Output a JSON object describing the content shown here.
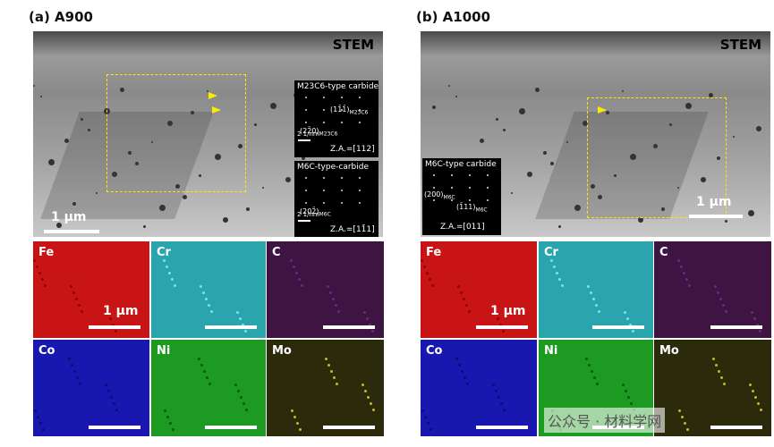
{
  "panels": [
    {
      "label": "(a) A900",
      "image": {
        "label": "STEM",
        "scale_bar": "1 μm",
        "insets": [
          {
            "title": "M23C6-type carbide",
            "spots": [
              {
                "index": "(11̄1̄)",
                "phase": "M23C6"
              },
              {
                "index": "(22̄0)",
                "phase": "M23C6"
              }
            ],
            "scale": "2 1/nm",
            "zone_axis": "Z.A.=[112]"
          },
          {
            "title": "M6C-type-carbide",
            "spots": [
              {
                "index": "(202̄)",
                "phase": "M6C"
              }
            ],
            "scale": "2 1/nm",
            "zone_axis": "Z.A.=[11̄1]"
          }
        ]
      },
      "maps": [
        {
          "element": "Fe",
          "scale_bar": "1 μm"
        },
        {
          "element": "Cr"
        },
        {
          "element": "C"
        },
        {
          "element": "Co"
        },
        {
          "element": "Ni"
        },
        {
          "element": "Mo"
        }
      ]
    },
    {
      "label": "(b) A1000",
      "image": {
        "label": "STEM",
        "scale_bar": "1 μm",
        "insets": [
          {
            "title": "M6C-type carbide",
            "spots": [
              {
                "index": "(200)",
                "phase": "M6C"
              },
              {
                "index": "(1̄11)",
                "phase": "M6C"
              }
            ],
            "zone_axis": "Z.A.=[011]"
          }
        ]
      },
      "maps": [
        {
          "element": "Fe",
          "scale_bar": "1 μm"
        },
        {
          "element": "Cr"
        },
        {
          "element": "C"
        },
        {
          "element": "Co"
        },
        {
          "element": "Ni"
        },
        {
          "element": "Mo"
        }
      ]
    }
  ],
  "watermark": "公众号 · 材料学网"
}
